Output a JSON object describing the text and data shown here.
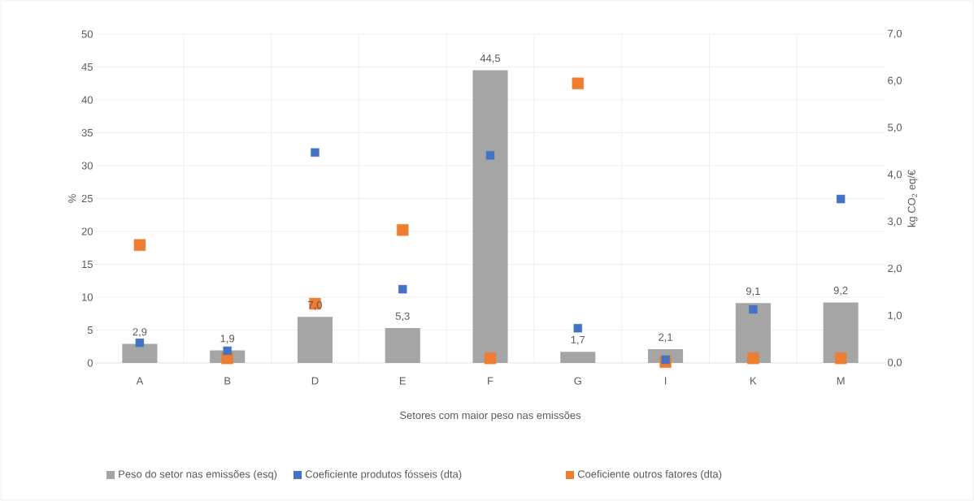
{
  "chart_data": {
    "type": "bar",
    "categories": [
      "A",
      "B",
      "D",
      "E",
      "F",
      "G",
      "I",
      "K",
      "M"
    ],
    "xlabel": "Setores com maior peso nas emissões",
    "ylabel": "%",
    "y2label": "kg CO$_{2}$ eq/€",
    "ylim": [
      0,
      50
    ],
    "yticks": [
      0,
      5,
      10,
      15,
      20,
      25,
      30,
      35,
      40,
      45,
      50
    ],
    "y2lim": [
      0,
      7
    ],
    "y2ticks": [
      {
        "value": 0,
        "label": "0,0"
      },
      {
        "value": 1,
        "label": "1,0"
      },
      {
        "value": 2,
        "label": "2,0"
      },
      {
        "value": 3,
        "label": "3,0"
      },
      {
        "value": 4,
        "label": "4,0"
      },
      {
        "value": 5,
        "label": "5,0"
      },
      {
        "value": 6,
        "label": "6,0"
      },
      {
        "value": 7,
        "label": "7,0"
      }
    ],
    "grid": true,
    "legend": "bottom",
    "series": [
      {
        "name": "Peso do setor nas emissões (esq)",
        "color": "#a5a5a5",
        "values": [
          2.9,
          1.9,
          7.0,
          5.3,
          44.5,
          1.7,
          2.1,
          9.1,
          9.2
        ],
        "value_labels": [
          "2,9",
          "1,9",
          "7,0",
          "5,3",
          "44,5",
          "1,7",
          "2,1",
          "9,1",
          "9,2"
        ]
      },
      {
        "name": "Coeficiente produtos fósseis (dta)",
        "type": "scatter",
        "axis": "y2",
        "marker": "square",
        "color": "#4472c4",
        "values": [
          0.43,
          0.26,
          4.48,
          1.57,
          4.42,
          0.74,
          0.07,
          1.14,
          3.49
        ]
      },
      {
        "name": "Coeficiente outros fatores (dta)",
        "type": "scatter",
        "axis": "y2",
        "marker": "square",
        "color": "#ed7d31",
        "values": [
          2.51,
          0.1,
          1.26,
          2.83,
          0.1,
          5.95,
          0.02,
          0.1,
          0.1
        ]
      }
    ]
  }
}
